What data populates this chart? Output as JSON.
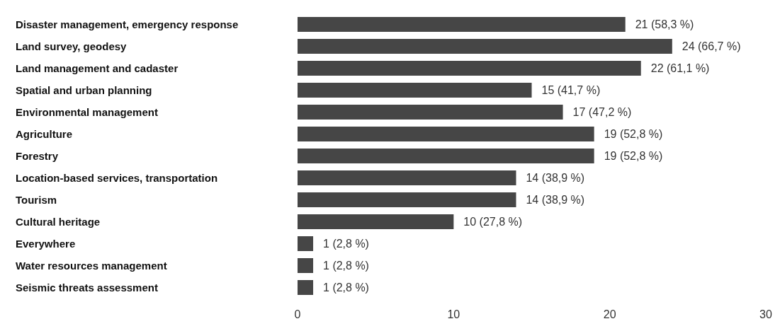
{
  "chart_data": {
    "type": "bar",
    "orientation": "horizontal",
    "categories": [
      "Disaster management, emergency response",
      "Land survey, geodesy",
      "Land management and cadaster",
      "Spatial and urban planning",
      "Environmental management",
      "Agriculture",
      "Forestry",
      "Location-based services, transportation",
      "Tourism",
      "Cultural heritage",
      "Everywhere",
      "Water resources management",
      "Seismic threats assessment"
    ],
    "values": [
      21,
      24,
      22,
      15,
      17,
      19,
      19,
      14,
      14,
      10,
      1,
      1,
      1
    ],
    "value_labels": [
      "21 (58,3 %)",
      "24 (66,7 %)",
      "22 (61,1 %)",
      "15 (41,7 %)",
      "17 (47,2 %)",
      "19 (52,8 %)",
      "19 (52,8 %)",
      "14 (38,9 %)",
      "14 (38,9 %)",
      "10 (27,8 %)",
      "1 (2,8 %)",
      "1 (2,8 %)",
      "1 (2,8 %)"
    ],
    "color": "#464646",
    "xlim": [
      0,
      30
    ],
    "xticks": [
      0,
      10,
      20,
      30
    ]
  }
}
